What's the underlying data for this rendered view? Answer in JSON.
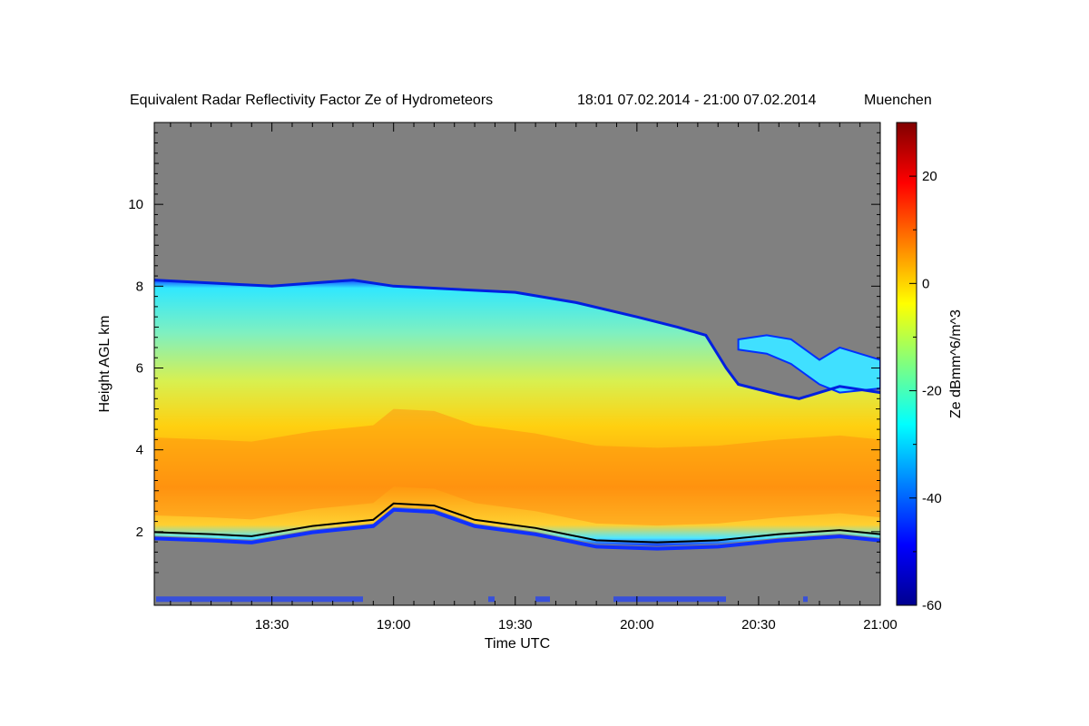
{
  "chart_data": {
    "type": "heatmap",
    "title": "Equivalent Radar Reflectivity Factor Ze of Hydrometeors",
    "time_range": "18:01 07.02.2014 - 21:00 07.02.2014",
    "location": "Muenchen",
    "xlabel": "Time UTC",
    "ylabel": "Height AGL km",
    "xlim": [
      "18:01",
      "21:00"
    ],
    "ylim": [
      0.2,
      12.0
    ],
    "x_ticks": [
      "18:30",
      "19:00",
      "19:30",
      "20:00",
      "20:30",
      "21:00"
    ],
    "y_ticks": [
      2,
      4,
      6,
      8,
      10
    ],
    "background": "#808080",
    "colorbar": {
      "label": "Ze dBmm^6/m^3",
      "range": [
        -60,
        30
      ],
      "ticks": [
        -60,
        -40,
        -20,
        0,
        20
      ]
    },
    "cloud_top_km": [
      {
        "t": "18:01",
        "h": 8.15
      },
      {
        "t": "18:30",
        "h": 8.0
      },
      {
        "t": "18:50",
        "h": 8.15
      },
      {
        "t": "19:00",
        "h": 8.0
      },
      {
        "t": "19:30",
        "h": 7.85
      },
      {
        "t": "19:45",
        "h": 7.6
      },
      {
        "t": "20:00",
        "h": 7.25
      },
      {
        "t": "20:10",
        "h": 7.0
      },
      {
        "t": "20:17",
        "h": 6.8
      },
      {
        "t": "20:22",
        "h": 6.0
      },
      {
        "t": "20:25",
        "h": 5.6
      },
      {
        "t": "20:35",
        "h": 5.35
      },
      {
        "t": "20:40",
        "h": 5.25
      },
      {
        "t": "20:50",
        "h": 5.55
      },
      {
        "t": "21:00",
        "h": 5.4
      }
    ],
    "cloud_base_km": [
      {
        "t": "18:01",
        "h": 1.9
      },
      {
        "t": "18:15",
        "h": 1.85
      },
      {
        "t": "18:25",
        "h": 1.8
      },
      {
        "t": "18:40",
        "h": 2.05
      },
      {
        "t": "18:55",
        "h": 2.2
      },
      {
        "t": "19:00",
        "h": 2.6
      },
      {
        "t": "19:10",
        "h": 2.55
      },
      {
        "t": "19:20",
        "h": 2.2
      },
      {
        "t": "19:35",
        "h": 2.0
      },
      {
        "t": "19:50",
        "h": 1.7
      },
      {
        "t": "20:05",
        "h": 1.65
      },
      {
        "t": "20:20",
        "h": 1.7
      },
      {
        "t": "20:35",
        "h": 1.85
      },
      {
        "t": "20:50",
        "h": 1.95
      },
      {
        "t": "21:00",
        "h": 1.85
      }
    ],
    "upper_cloud_km": [
      {
        "t": "20:25",
        "h_top": 6.7,
        "h_bot": 6.45
      },
      {
        "t": "20:32",
        "h_top": 6.8,
        "h_bot": 6.35
      },
      {
        "t": "20:38",
        "h_top": 6.7,
        "h_bot": 6.1
      },
      {
        "t": "20:45",
        "h_top": 6.2,
        "h_bot": 5.6
      },
      {
        "t": "20:50",
        "h_top": 6.5,
        "h_bot": 5.4
      },
      {
        "t": "21:00",
        "h_top": 6.2,
        "h_bot": 5.5
      }
    ]
  }
}
